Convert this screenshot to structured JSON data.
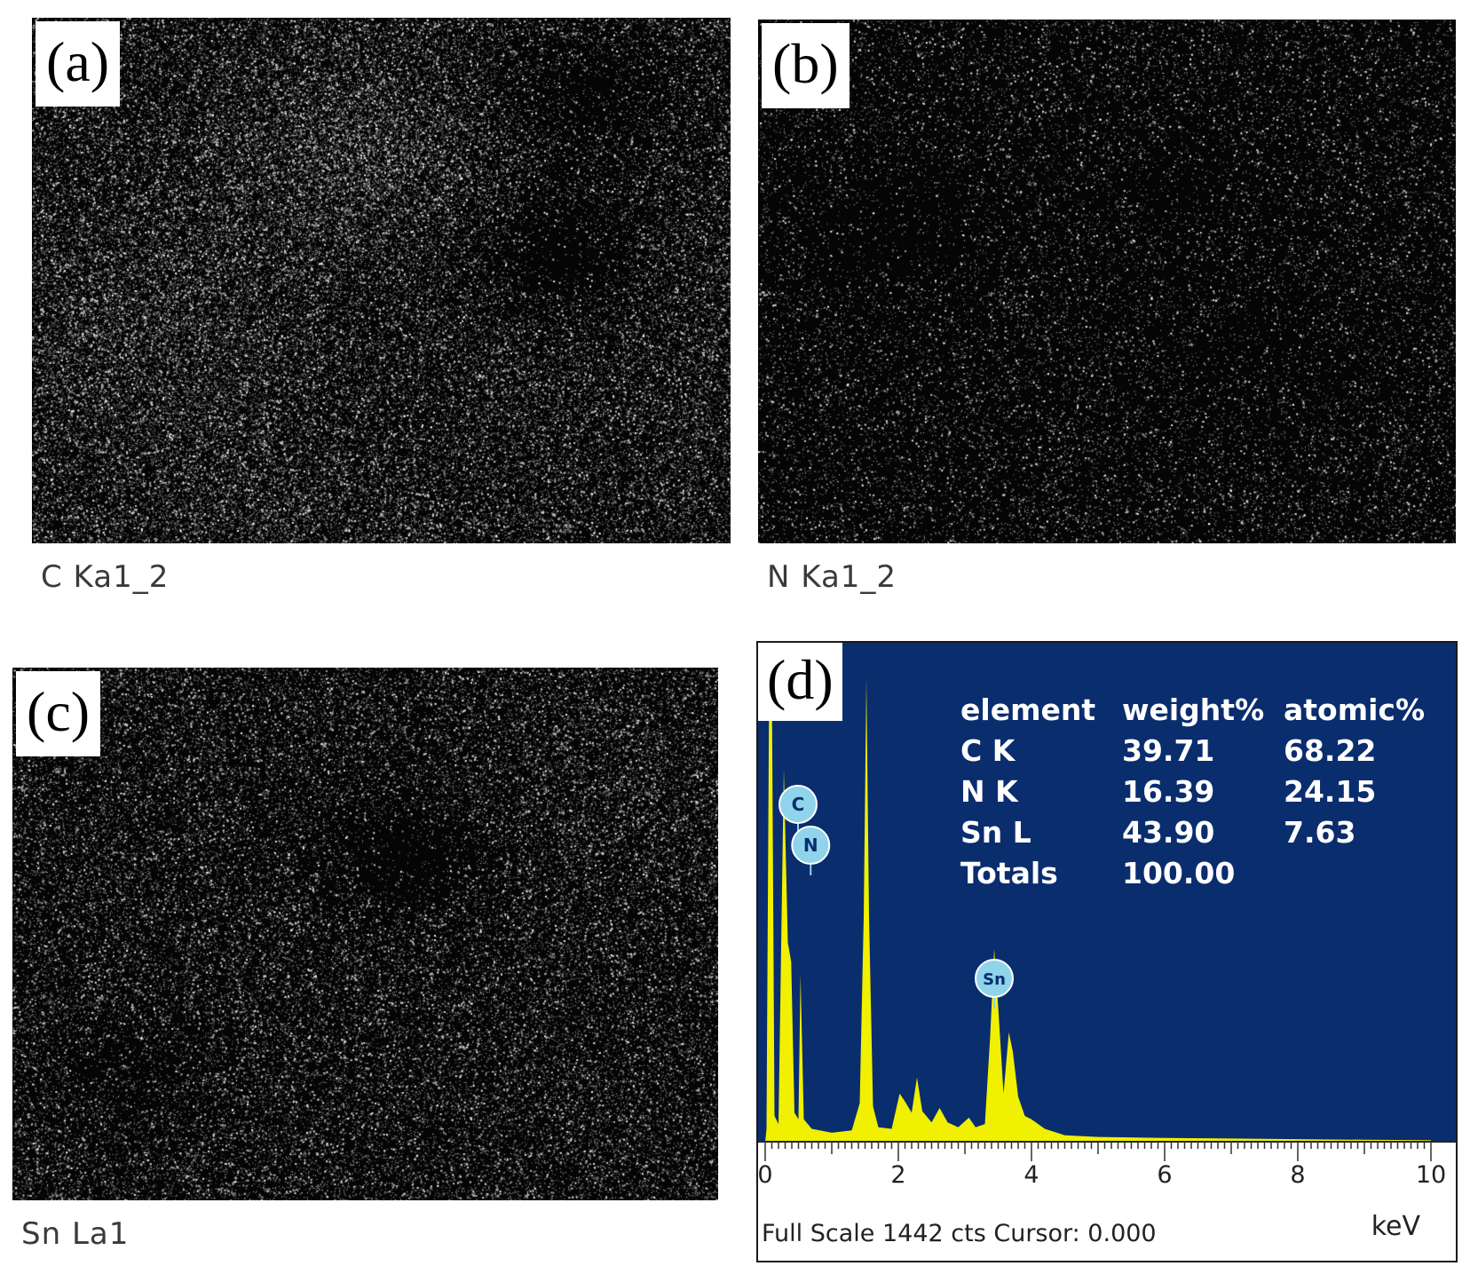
{
  "panels": [
    {
      "tag": "(a)",
      "caption": "C Ka1_2"
    },
    {
      "tag": "(b)",
      "caption": "N Ka1_2"
    },
    {
      "tag": "(c)",
      "caption": "Sn La1"
    }
  ],
  "spectrum": {
    "tag": "(d)",
    "background_color": "#0a2d6e",
    "trace_color": "#f0f000",
    "peak_marker_color": "#8fd4ea",
    "full_scale_text": "Full Scale 1442 cts Cursor: 0.000",
    "unit": "keV",
    "table": {
      "headers": [
        "element",
        "weight%",
        "atomic%"
      ],
      "rows": [
        [
          "C K",
          "39.71",
          "68.22"
        ],
        [
          "N K",
          "16.39",
          "24.15"
        ],
        [
          "Sn L",
          "43.90",
          "7.63"
        ],
        [
          "Totals",
          "100.00",
          ""
        ]
      ]
    }
  },
  "chart_data": {
    "type": "line",
    "xlabel": "keV",
    "ylabel": "",
    "xlim": [
      0,
      10
    ],
    "ylim": [
      0,
      1442
    ],
    "x_ticks": [
      "0",
      "2",
      "4",
      "6",
      "8",
      "10"
    ],
    "annotations": [
      {
        "label": "C",
        "x": 0.28
      },
      {
        "label": "N",
        "x": 0.39
      },
      {
        "label": "Sn",
        "x": 3.44
      }
    ],
    "series": [
      {
        "points": [
          [
            0.0,
            0
          ],
          [
            0.02,
            40
          ],
          [
            0.06,
            1442
          ],
          [
            0.1,
            1442
          ],
          [
            0.14,
            80
          ],
          [
            0.2,
            55
          ],
          [
            0.28,
            1160
          ],
          [
            0.34,
            620
          ],
          [
            0.39,
            560
          ],
          [
            0.44,
            90
          ],
          [
            0.5,
            70
          ],
          [
            0.53,
            520
          ],
          [
            0.58,
            70
          ],
          [
            0.7,
            40
          ],
          [
            1.0,
            28
          ],
          [
            1.3,
            35
          ],
          [
            1.42,
            120
          ],
          [
            1.48,
            700
          ],
          [
            1.52,
            1442
          ],
          [
            1.56,
            700
          ],
          [
            1.62,
            110
          ],
          [
            1.7,
            45
          ],
          [
            1.9,
            40
          ],
          [
            2.02,
            150
          ],
          [
            2.1,
            125
          ],
          [
            2.2,
            90
          ],
          [
            2.28,
            200
          ],
          [
            2.36,
            95
          ],
          [
            2.5,
            60
          ],
          [
            2.62,
            105
          ],
          [
            2.74,
            60
          ],
          [
            2.9,
            45
          ],
          [
            3.06,
            75
          ],
          [
            3.16,
            45
          ],
          [
            3.3,
            55
          ],
          [
            3.38,
            330
          ],
          [
            3.44,
            600
          ],
          [
            3.5,
            420
          ],
          [
            3.58,
            150
          ],
          [
            3.66,
            340
          ],
          [
            3.72,
            280
          ],
          [
            3.8,
            140
          ],
          [
            3.9,
            80
          ],
          [
            4.0,
            70
          ],
          [
            4.2,
            40
          ],
          [
            4.5,
            20
          ],
          [
            5.0,
            15
          ],
          [
            6.0,
            12
          ],
          [
            7.0,
            10
          ],
          [
            8.0,
            8
          ],
          [
            9.0,
            6
          ],
          [
            10.0,
            5
          ]
        ]
      }
    ]
  }
}
